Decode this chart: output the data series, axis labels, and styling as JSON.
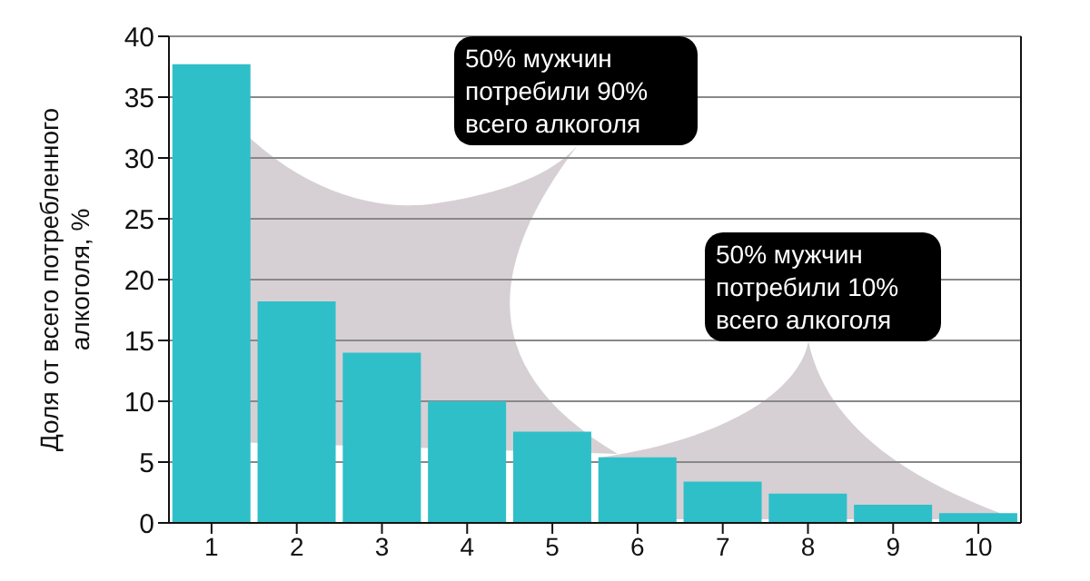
{
  "chart_data": {
    "type": "bar",
    "ylabel": "Доля от всего потребленного алкоголя, %",
    "categories": [
      "1",
      "2",
      "3",
      "4",
      "5",
      "6",
      "7",
      "8",
      "9",
      "10"
    ],
    "values": [
      37.7,
      18.2,
      14.0,
      10.0,
      7.5,
      5.4,
      3.4,
      2.4,
      1.5,
      0.8
    ],
    "color": "#2fbfc9",
    "ylim": [
      0,
      40
    ],
    "yticks": [
      0,
      5,
      10,
      15,
      20,
      25,
      30,
      35,
      40
    ],
    "grid": "y",
    "annotations": [
      "50% мужчин\nпотребили 90%\nвсего алкоголя",
      "50% мужчин\nпотребили 10%\nвсего алкоголя"
    ]
  }
}
